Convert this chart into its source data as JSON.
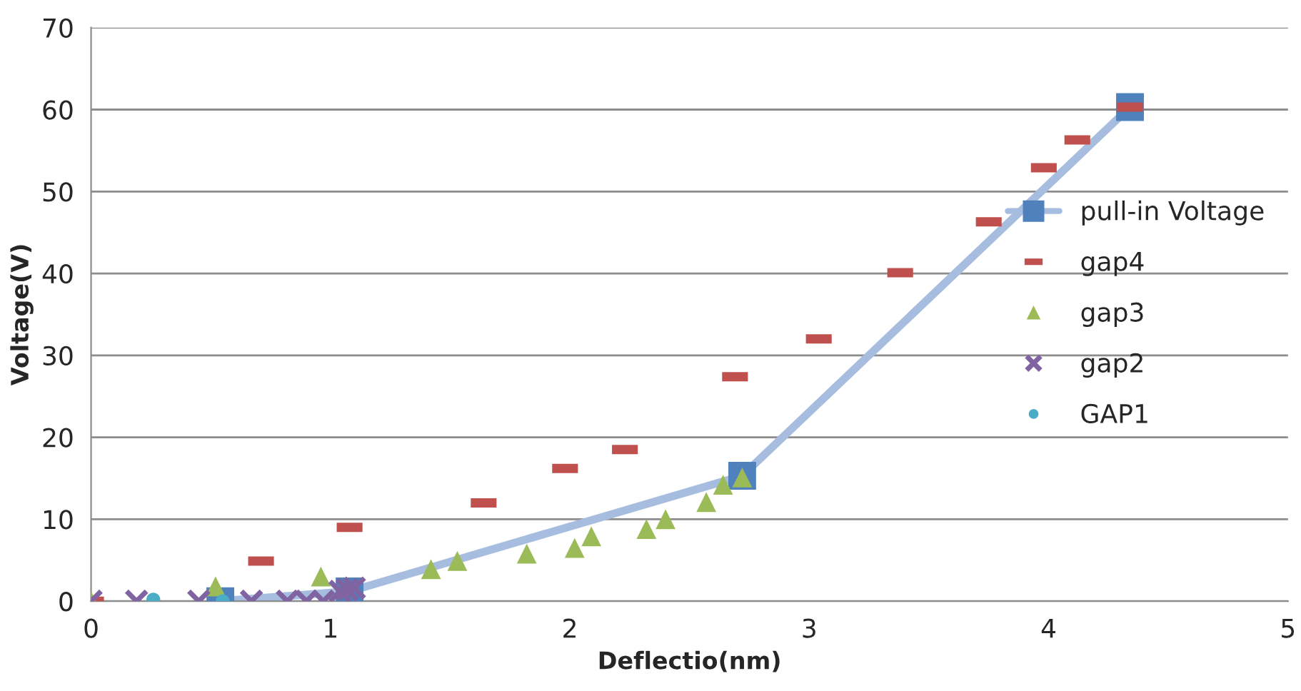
{
  "chart_data": {
    "type": "scatter",
    "xlabel": "Deflectio(nm)",
    "ylabel": "Voltage(V)",
    "xlim": [
      0,
      5
    ],
    "xticks": [
      0,
      1,
      2,
      3,
      4,
      5
    ],
    "ylim": [
      0,
      70
    ],
    "yticks": [
      0,
      10,
      20,
      30,
      40,
      50,
      60,
      70
    ],
    "grid": "y",
    "legend": "right",
    "series": [
      {
        "name": "pull-in Voltage",
        "type": "line",
        "marker": "square",
        "line_style": "solid",
        "color": "#4f81bd",
        "x": [
          0.54,
          1.08,
          2.72,
          4.34
        ],
        "values": [
          0,
          1.2,
          15.3,
          60.3
        ]
      },
      {
        "name": "gap4",
        "color": "#c0504d",
        "x": [
          0,
          0.71,
          1.08,
          1.64,
          1.98,
          2.23,
          2.69,
          3.04,
          3.38,
          3.75,
          3.98,
          4.12,
          4.34
        ],
        "values": [
          0,
          4.9,
          9.0,
          12.0,
          16.2,
          18.5,
          27.4,
          32.0,
          40.1,
          46.3,
          52.9,
          56.3,
          60.3
        ]
      },
      {
        "name": "gap3",
        "marker": "triangle",
        "color": "#9bbb59",
        "x": [
          0,
          0.52,
          0.96,
          1.42,
          1.53,
          1.82,
          2.02,
          2.09,
          2.32,
          2.4,
          2.57,
          2.64,
          2.72
        ],
        "values": [
          0,
          1.8,
          3.0,
          3.9,
          4.9,
          5.8,
          6.5,
          7.9,
          8.8,
          10.0,
          12.1,
          14.2,
          15.1
        ]
      },
      {
        "name": "gap2",
        "marker": "cross",
        "color": "#8064a2",
        "x": [
          0,
          0.19,
          0.45,
          0.67,
          0.82,
          0.9,
          0.97,
          1.04,
          1.07,
          1.1
        ],
        "values": [
          0,
          0,
          0,
          0,
          0,
          0,
          0,
          1.2,
          1.4,
          1.6
        ]
      },
      {
        "name": "GAP1",
        "marker": "circle",
        "color": "#4bacc6",
        "x": [
          0.26,
          0.55
        ],
        "values": [
          0.2,
          0
        ]
      }
    ]
  }
}
